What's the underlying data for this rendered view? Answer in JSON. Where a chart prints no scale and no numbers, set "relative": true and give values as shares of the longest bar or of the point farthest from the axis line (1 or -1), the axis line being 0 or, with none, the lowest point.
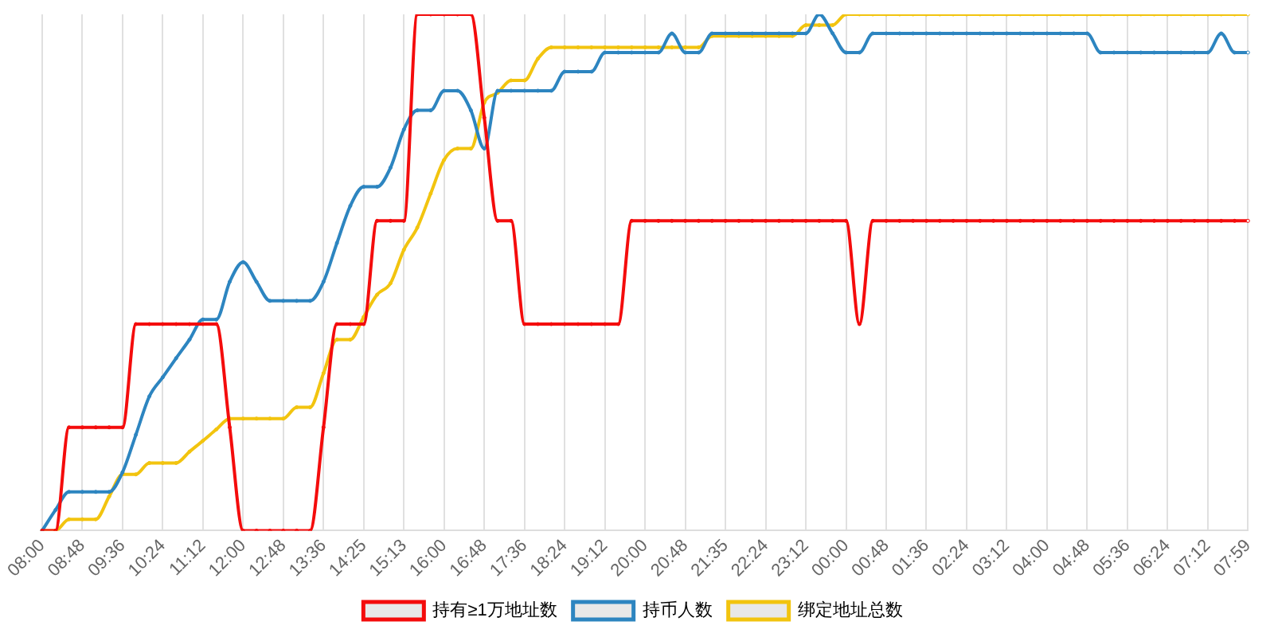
{
  "chart_data": {
    "type": "line",
    "relative": true,
    "grid": "x",
    "legend": "bottom",
    "marker": "circle",
    "line_style": "solid",
    "categories": [
      "08:00",
      null,
      null,
      "08:48",
      null,
      null,
      "09:36",
      null,
      null,
      "10:24",
      null,
      null,
      "11:12",
      null,
      null,
      "12:00",
      null,
      null,
      "12:48",
      null,
      null,
      "13:36",
      null,
      null,
      "14:25",
      null,
      null,
      "15:13",
      null,
      null,
      "16:00",
      null,
      null,
      "16:48",
      null,
      null,
      "17:36",
      null,
      null,
      "18:24",
      null,
      null,
      "19:12",
      null,
      null,
      "20:00",
      null,
      null,
      "20:48",
      null,
      null,
      "21:35",
      null,
      null,
      "22:24",
      null,
      null,
      "23:12",
      null,
      null,
      "00:00",
      null,
      null,
      "00:48",
      null,
      null,
      "01:36",
      null,
      null,
      "02:24",
      null,
      null,
      "03:12",
      null,
      null,
      "04:00",
      null,
      null,
      "04:48",
      null,
      null,
      "05:36",
      null,
      null,
      "06:24",
      null,
      null,
      "07:12",
      null,
      null,
      "07:59"
    ],
    "series": [
      {
        "name": "持有≥1万地址数",
        "color": "#f40c0c",
        "values": [
          0,
          0,
          0.2,
          0.2,
          0.2,
          0.2,
          0.2,
          0.4,
          0.4,
          0.4,
          0.4,
          0.4,
          0.4,
          0.4,
          0.2,
          0,
          0,
          0,
          0,
          0,
          0,
          0.2,
          0.4,
          0.4,
          0.4,
          0.6,
          0.6,
          0.6,
          1,
          1,
          1,
          1,
          1,
          0.8,
          0.6,
          0.6,
          0.4,
          0.4,
          0.4,
          0.4,
          0.4,
          0.4,
          0.4,
          0.4,
          0.6,
          0.6,
          0.6,
          0.6,
          0.6,
          0.6,
          0.6,
          0.6,
          0.6,
          0.6,
          0.6,
          0.6,
          0.6,
          0.6,
          0.6,
          0.6,
          0.6,
          0.4,
          0.6,
          0.6,
          0.6,
          0.6,
          0.6,
          0.6,
          0.6,
          0.6,
          0.6,
          0.6,
          0.6,
          0.6,
          0.6,
          0.6,
          0.6,
          0.6,
          0.6,
          0.6,
          0.6,
          0.6,
          0.6,
          0.6,
          0.6,
          0.6,
          0.6,
          0.6,
          0.6,
          0.6,
          0.6
        ]
      },
      {
        "name": "持币人数",
        "color": "#2d85c0",
        "values": [
          0,
          0.04,
          0.075,
          0.075,
          0.075,
          0.075,
          0.113,
          0.186,
          0.26,
          0.297,
          0.334,
          0.37,
          0.409,
          0.409,
          0.482,
          0.52,
          0.482,
          0.445,
          0.445,
          0.445,
          0.445,
          0.482,
          0.557,
          0.629,
          0.666,
          0.666,
          0.703,
          0.777,
          0.814,
          0.814,
          0.852,
          0.852,
          0.814,
          0.74,
          0.852,
          0.852,
          0.852,
          0.852,
          0.852,
          0.889,
          0.889,
          0.889,
          0.926,
          0.926,
          0.926,
          0.926,
          0.926,
          0.963,
          0.926,
          0.926,
          0.963,
          0.963,
          0.963,
          0.963,
          0.963,
          0.963,
          0.963,
          0.963,
          1,
          0.963,
          0.926,
          0.926,
          0.963,
          0.963,
          0.963,
          0.963,
          0.963,
          0.963,
          0.963,
          0.963,
          0.963,
          0.963,
          0.963,
          0.963,
          0.963,
          0.963,
          0.963,
          0.963,
          0.963,
          0.926,
          0.926,
          0.926,
          0.926,
          0.926,
          0.926,
          0.926,
          0.926,
          0.926,
          0.963,
          0.926,
          0.926
        ]
      },
      {
        "name": "绑定地址总数",
        "color": "#f2c40f",
        "values": [
          0,
          0,
          0.022,
          0.022,
          0.022,
          0.066,
          0.109,
          0.109,
          0.131,
          0.131,
          0.131,
          0.153,
          0.174,
          0.196,
          0.217,
          0.217,
          0.217,
          0.217,
          0.217,
          0.239,
          0.239,
          0.305,
          0.37,
          0.37,
          0.414,
          0.457,
          0.479,
          0.544,
          0.587,
          0.653,
          0.718,
          0.74,
          0.74,
          0.829,
          0.848,
          0.872,
          0.872,
          0.914,
          0.936,
          0.936,
          0.936,
          0.936,
          0.936,
          0.936,
          0.936,
          0.936,
          0.936,
          0.936,
          0.936,
          0.936,
          0.958,
          0.958,
          0.958,
          0.958,
          0.958,
          0.958,
          0.958,
          0.979,
          0.979,
          0.979,
          1,
          1,
          1,
          1,
          1,
          1,
          1,
          1,
          1,
          1,
          1,
          1,
          1,
          1,
          1,
          1,
          1,
          1,
          1,
          1,
          1,
          1,
          1,
          1,
          1,
          1,
          1,
          1,
          1,
          1,
          1
        ]
      }
    ]
  }
}
